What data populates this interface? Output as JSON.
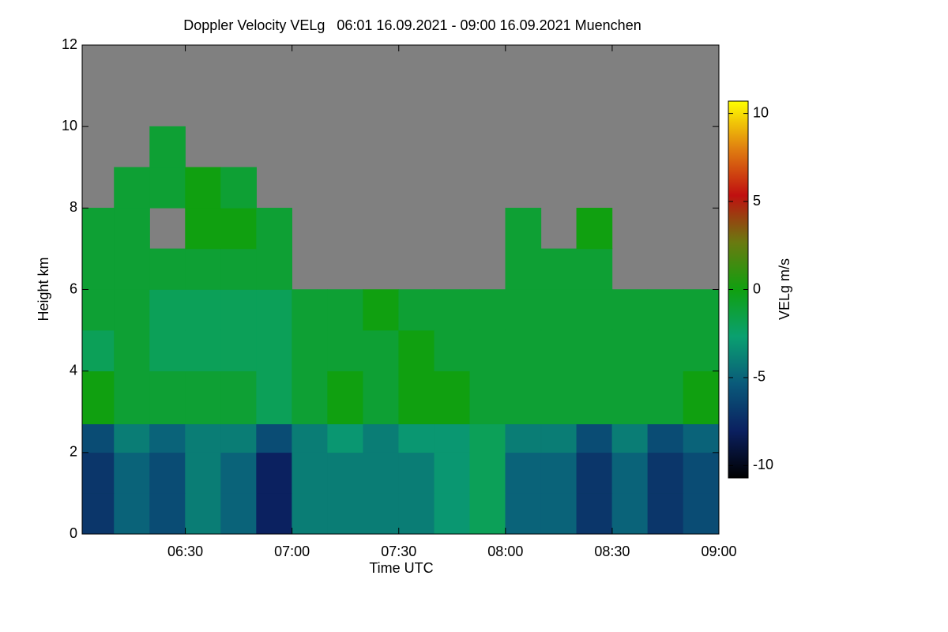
{
  "chart_data": {
    "type": "heatmap",
    "title": "Doppler Velocity VELg   06:01 16.09.2021 - 09:00 16.09.2021 Muenchen",
    "xlabel": "Time UTC",
    "ylabel": "Height km",
    "colorbar_label": "VELg m/s",
    "x": [
      361,
      370,
      380,
      390,
      400,
      410,
      420,
      430,
      440,
      450,
      460,
      470,
      480,
      490,
      500,
      510,
      520,
      530,
      540
    ],
    "y": [
      0,
      1,
      2,
      2.7,
      4,
      5,
      6,
      7,
      8,
      9,
      10,
      11,
      12
    ],
    "z": [
      [
        -7,
        -5,
        -6,
        -4,
        -5,
        -8,
        -4,
        -4,
        -4,
        -4,
        -3,
        -2,
        -5,
        -5,
        -7,
        -5,
        -7,
        -6
      ],
      [
        -7,
        -5,
        -6,
        -4,
        -5,
        -8,
        -4,
        -4,
        -4,
        -4,
        -3,
        -2,
        -5,
        -5,
        -7,
        -5,
        -7,
        -6
      ],
      [
        -6,
        -4,
        -5,
        -4,
        -4,
        -6,
        -4,
        -3,
        -4,
        -3,
        -3,
        -2,
        -4,
        -4,
        -6,
        -4,
        -6,
        -5
      ],
      [
        0,
        -1,
        -1,
        -1,
        -1,
        -2,
        -1,
        0,
        -1,
        0,
        0,
        -1,
        -1,
        -1,
        -1,
        -1,
        -1,
        0
      ],
      [
        -2,
        -1,
        -2,
        -2,
        -2,
        -2,
        -1,
        -1,
        -1,
        0,
        -1,
        -1,
        -1,
        -1,
        -1,
        -1,
        -1,
        -1
      ],
      [
        -1,
        -1,
        -2,
        -2,
        -2,
        -2,
        -1,
        -1,
        0,
        -1,
        -1,
        -1,
        -1,
        -1,
        -1,
        -1,
        -1,
        -1
      ],
      [
        -1,
        -1,
        -1,
        -1,
        -1,
        -1,
        null,
        null,
        null,
        null,
        null,
        null,
        -1,
        -1,
        -1,
        null,
        null,
        null
      ],
      [
        -1,
        -1,
        null,
        0,
        0,
        -1,
        null,
        null,
        null,
        null,
        null,
        null,
        -1,
        null,
        0,
        null,
        null,
        null
      ],
      [
        null,
        -1,
        -1,
        0,
        -1,
        null,
        null,
        null,
        null,
        null,
        null,
        null,
        null,
        null,
        null,
        null,
        null,
        null
      ],
      [
        null,
        null,
        -1,
        null,
        null,
        null,
        null,
        null,
        null,
        null,
        null,
        null,
        null,
        null,
        null,
        null,
        null,
        null
      ],
      [
        null,
        null,
        null,
        null,
        null,
        null,
        null,
        null,
        null,
        null,
        null,
        null,
        null,
        null,
        null,
        null,
        null,
        null
      ],
      [
        null,
        null,
        null,
        null,
        null,
        null,
        null,
        null,
        null,
        null,
        null,
        null,
        null,
        null,
        null,
        null,
        null,
        null
      ]
    ],
    "xlim": [
      361,
      540
    ],
    "xticks": [
      {
        "value": 390,
        "label": "06:30"
      },
      {
        "value": 420,
        "label": "07:00"
      },
      {
        "value": 450,
        "label": "07:30"
      },
      {
        "value": 480,
        "label": "08:00"
      },
      {
        "value": 510,
        "label": "08:30"
      },
      {
        "value": 540,
        "label": "09:00"
      }
    ],
    "ylim": [
      0,
      12
    ],
    "yticks": [
      0,
      2,
      4,
      6,
      8,
      10,
      12
    ],
    "zlim": [
      -10.7,
      10.7
    ],
    "zticks": [
      -10,
      -5,
      0,
      5,
      10
    ],
    "colorscale": [
      "#000000",
      "#0b2060",
      "#0a5a7a",
      "#0aa070",
      "#10a010",
      "#6a7a10",
      "#c01010",
      "#e08010",
      "#ffff00"
    ],
    "missing_color": "#808080"
  }
}
